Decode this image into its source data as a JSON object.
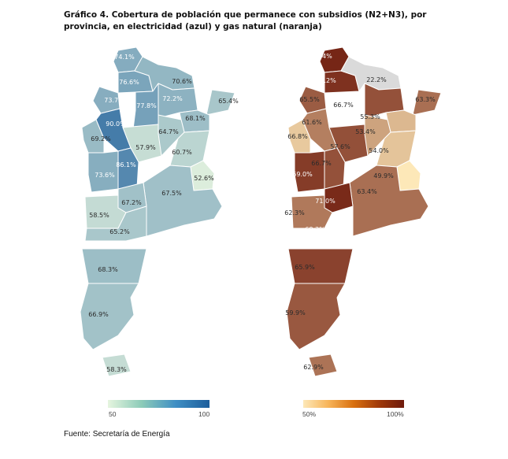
{
  "title": "Gráfico 4. Cobertura de población que permanece con subsidios (N2+N3), por provincia, en electricidad (azul) y gas natural (naranja)",
  "source": "Fuente: Secretaría de Energía",
  "maps": {
    "electricity": {
      "colors": [
        "#e6f5df",
        "#1d5e9c"
      ],
      "legend_min": "50",
      "legend_max": "100",
      "labels": [
        "74.1%",
        "76.6%",
        "70.6%",
        "73.7%",
        "77.8%",
        "72.2%",
        "65.4%",
        "90.0%",
        "68.1%",
        "69.2%",
        "57.9%",
        "64.7%",
        "60.7%",
        "86.1%",
        "73.6%",
        "52.6%",
        "67.5%",
        "67.2%",
        "58.5%",
        "65.2%",
        "68.3%",
        "66.9%",
        "58.3%"
      ]
    },
    "gas": {
      "colors": [
        "#fde8b8",
        "#6e1a0c"
      ],
      "legend_min": "50%",
      "legend_max": "100%",
      "no_data_color": "#dadada",
      "labels": [
        "71.4%",
        "70.2%",
        "22.2%",
        "65.5%",
        "66.7%",
        "63.3%",
        "61.6%",
        "55.3%",
        "53.4%",
        "66.8%",
        "57.6%",
        "54.0%",
        "66.7%",
        "69.0%",
        "49.9%",
        "63.4%",
        "71.0%",
        "62.3%",
        "68.3%",
        "65.9%",
        "59.9%",
        "62.9%"
      ]
    }
  }
}
